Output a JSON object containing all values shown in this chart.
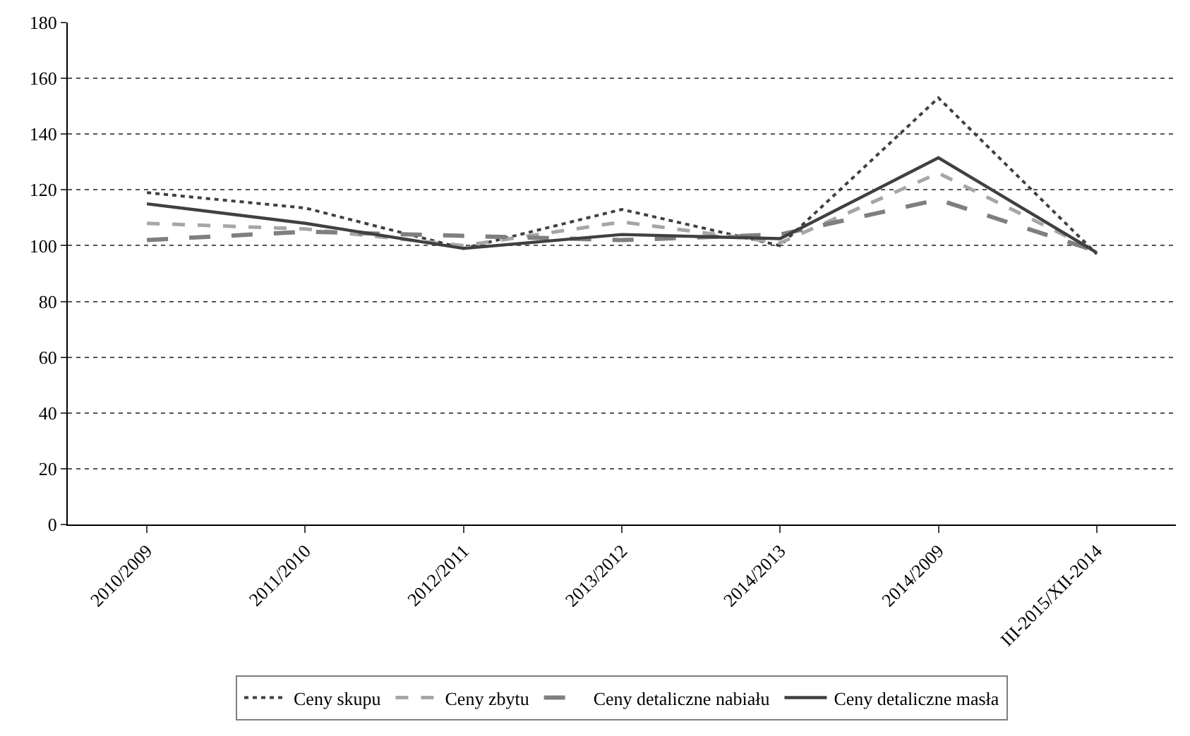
{
  "chart_data": {
    "type": "line",
    "categories": [
      "2010/2009",
      "2011/2010",
      "2012/2011",
      "2013/2012",
      "2014/2013",
      "2014/2009",
      "III-2015/XII-2014"
    ],
    "series": [
      {
        "name": "Ceny skupu",
        "color": "#404040",
        "line_style": "dotted",
        "values": [
          119,
          113.5,
          99,
          113,
          100,
          153,
          97
        ]
      },
      {
        "name": "Ceny zbytu",
        "color": "#a6a6a6",
        "line_style": "dashed",
        "values": [
          108,
          106,
          100,
          108.5,
          101,
          126,
          98
        ]
      },
      {
        "name": "Ceny detaliczne nabiału",
        "color": "#7f7f7f",
        "line_style": "longdash",
        "values": [
          102,
          105,
          103.5,
          102,
          104,
          116.5,
          98
        ]
      },
      {
        "name": "Ceny detaliczne masła",
        "color": "#404040",
        "line_style": "solid",
        "values": [
          115,
          108,
          99,
          104,
          102.5,
          131.5,
          97.5
        ]
      }
    ],
    "ylim": [
      0,
      180
    ],
    "yticks": [
      0,
      20,
      40,
      60,
      80,
      100,
      120,
      140,
      160,
      180
    ],
    "grid": "y",
    "legend": "bottom",
    "marker": "none"
  }
}
